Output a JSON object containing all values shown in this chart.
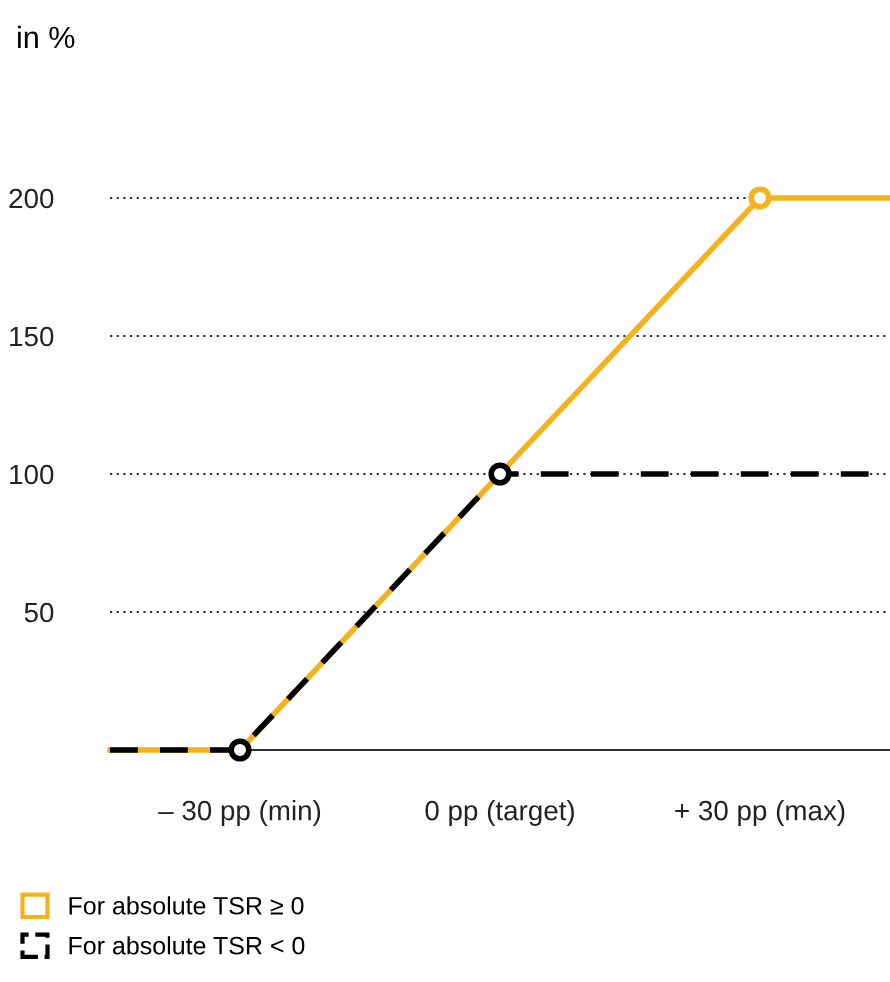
{
  "chart_data": {
    "type": "line",
    "ylabel": "in %",
    "xlim": [
      -45,
      45
    ],
    "ylim": [
      0,
      200
    ],
    "xticks": [
      {
        "value": -30,
        "label": "– 30 pp (min)"
      },
      {
        "value": 0,
        "label": "0 pp (target)"
      },
      {
        "value": 30,
        "label": "+ 30 pp (max)"
      }
    ],
    "yticks": [
      50,
      100,
      150,
      200
    ],
    "grid": "y",
    "legend": "bottom left",
    "series": [
      {
        "name": "For absolute TSR ≥ 0",
        "color": "#f5b21d",
        "x": [
          -45,
          -30,
          0,
          30,
          45
        ],
        "values": [
          0,
          0,
          100,
          200,
          200
        ],
        "line_style": "solid"
      },
      {
        "name": "For absolute TSR < 0",
        "color": "#000000",
        "x": [
          -45,
          -30,
          0,
          45
        ],
        "values": [
          0,
          0,
          100,
          100
        ],
        "line_style": "dashed"
      },
      {
        "type": "scatter",
        "color": "#000000",
        "x": [
          -30,
          0
        ],
        "values": [
          0,
          100
        ],
        "marker": "circle"
      },
      {
        "type": "scatter",
        "color": "#f5b21d",
        "x": [
          30
        ],
        "values": [
          200
        ],
        "marker": "circle"
      }
    ]
  }
}
